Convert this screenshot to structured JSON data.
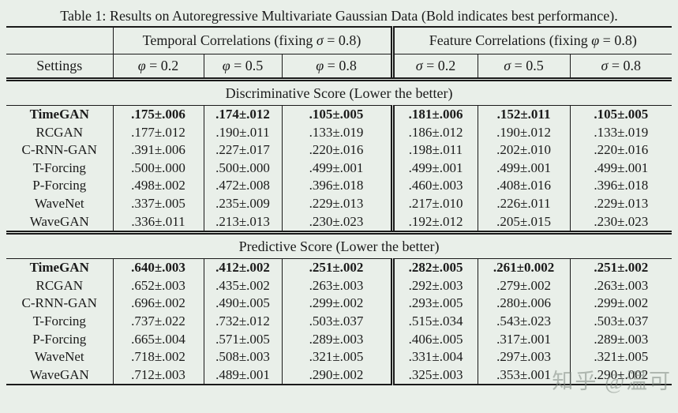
{
  "page": {
    "title": "Table 1: Results on Autoregressive Multivariate Gaussian Data (Bold indicates best performance).",
    "watermark": "知乎 @温可"
  },
  "table": {
    "group_headers": {
      "temporal": {
        "prefix": "Temporal Correlations (fixing ",
        "symbol": "σ",
        "suffix": " = 0.8)"
      },
      "feature": {
        "prefix": "Feature Correlations (fixing ",
        "symbol": "φ",
        "suffix": " = 0.8)"
      }
    },
    "column_headers": [
      {
        "label": "Settings"
      },
      {
        "symbol": "φ",
        "suffix": " = 0.2"
      },
      {
        "symbol": "φ",
        "suffix": " = 0.5"
      },
      {
        "symbol": "φ",
        "suffix": " = 0.8"
      },
      {
        "symbol": "σ",
        "suffix": " = 0.2"
      },
      {
        "symbol": "σ",
        "suffix": " = 0.5"
      },
      {
        "symbol": "σ",
        "suffix": " = 0.8"
      }
    ],
    "sections": [
      {
        "band": "Discriminative Score (Lower the better)",
        "rows": [
          {
            "method": "TimeGAN",
            "bold": true,
            "values": [
              ".175±.006",
              ".174±.012",
              ".105±.005",
              ".181±.006",
              ".152±.011",
              ".105±.005"
            ]
          },
          {
            "method": "RCGAN",
            "bold": false,
            "values": [
              ".177±.012",
              ".190±.011",
              ".133±.019",
              ".186±.012",
              ".190±.012",
              ".133±.019"
            ]
          },
          {
            "method": "C-RNN-GAN",
            "bold": false,
            "values": [
              ".391±.006",
              ".227±.017",
              ".220±.016",
              ".198±.011",
              ".202±.010",
              ".220±.016"
            ]
          },
          {
            "method": "T-Forcing",
            "bold": false,
            "values": [
              ".500±.000",
              ".500±.000",
              ".499±.001",
              ".499±.001",
              ".499±.001",
              ".499±.001"
            ]
          },
          {
            "method": "P-Forcing",
            "bold": false,
            "values": [
              ".498±.002",
              ".472±.008",
              ".396±.018",
              ".460±.003",
              ".408±.016",
              ".396±.018"
            ]
          },
          {
            "method": "WaveNet",
            "bold": false,
            "values": [
              ".337±.005",
              ".235±.009",
              ".229±.013",
              ".217±.010",
              ".226±.011",
              ".229±.013"
            ]
          },
          {
            "method": "WaveGAN",
            "bold": false,
            "values": [
              ".336±.011",
              ".213±.013",
              ".230±.023",
              ".192±.012",
              ".205±.015",
              ".230±.023"
            ]
          }
        ]
      },
      {
        "band": "Predictive Score (Lower the better)",
        "rows": [
          {
            "method": "TimeGAN",
            "bold": true,
            "values": [
              ".640±.003",
              ".412±.002",
              ".251±.002",
              ".282±.005",
              ".261±0.002",
              ".251±.002"
            ]
          },
          {
            "method": "RCGAN",
            "bold": false,
            "values": [
              ".652±.003",
              ".435±.002",
              ".263±.003",
              ".292±.003",
              ".279±.002",
              ".263±.003"
            ]
          },
          {
            "method": "C-RNN-GAN",
            "bold": false,
            "values": [
              ".696±.002",
              ".490±.005",
              ".299±.002",
              ".293±.005",
              ".280±.006",
              ".299±.002"
            ]
          },
          {
            "method": "T-Forcing",
            "bold": false,
            "values": [
              ".737±.022",
              ".732±.012",
              ".503±.037",
              ".515±.034",
              ".543±.023",
              ".503±.037"
            ]
          },
          {
            "method": "P-Forcing",
            "bold": false,
            "values": [
              ".665±.004",
              ".571±.005",
              ".289±.003",
              ".406±.005",
              ".317±.001",
              ".289±.003"
            ]
          },
          {
            "method": "WaveNet",
            "bold": false,
            "values": [
              ".718±.002",
              ".508±.003",
              ".321±.005",
              ".331±.004",
              ".297±.003",
              ".321±.005"
            ]
          },
          {
            "method": "WaveGAN",
            "bold": false,
            "values": [
              ".712±.003",
              ".489±.001",
              ".290±.002",
              ".325±.003",
              ".353±.001",
              ".290±.002"
            ]
          }
        ]
      }
    ]
  },
  "colors": {
    "background": "#e9efe9",
    "ink": "#1a1a1a",
    "watermark_gray": "#828a82"
  }
}
